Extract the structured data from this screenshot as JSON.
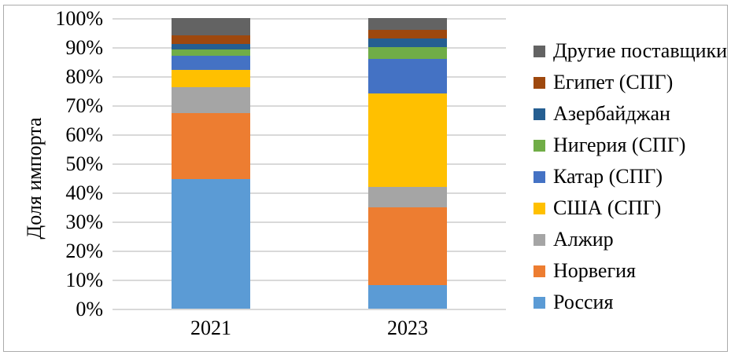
{
  "chart_data": {
    "type": "bar",
    "subtype": "stacked-100-percent",
    "title": "",
    "xlabel": "",
    "ylabel": "Доля импорта",
    "unit": "%",
    "categories": [
      "2021",
      "2023"
    ],
    "series": [
      {
        "name": "Россия",
        "color": "#5B9BD5",
        "values": [
          45,
          8
        ]
      },
      {
        "name": "Норвегия",
        "color": "#ED7D31",
        "values": [
          23,
          27
        ]
      },
      {
        "name": "Алжир",
        "color": "#A5A5A5",
        "values": [
          9,
          7
        ]
      },
      {
        "name": "США (СПГ)",
        "color": "#FFC000",
        "values": [
          6,
          32
        ]
      },
      {
        "name": "Катар (СПГ)",
        "color": "#4472C4",
        "values": [
          5,
          12
        ]
      },
      {
        "name": "Нигерия (СПГ)",
        "color": "#70AD47",
        "values": [
          2,
          4
        ]
      },
      {
        "name": "Азербайджан",
        "color": "#255E91",
        "values": [
          2,
          3
        ]
      },
      {
        "name": "Египет (СПГ)",
        "color": "#9E480E",
        "values": [
          3,
          3
        ]
      },
      {
        "name": "Другие поставщики",
        "color": "#636363",
        "values": [
          6,
          4
        ]
      }
    ],
    "ylim": [
      0,
      100
    ],
    "y_ticks": [
      "0%",
      "10%",
      "20%",
      "30%",
      "40%",
      "50%",
      "60%",
      "70%",
      "80%",
      "90%",
      "100%"
    ],
    "grid": true,
    "legend_position": "right",
    "legend_order_top_to_bottom": [
      "Другие поставщики",
      "Египет (СПГ)",
      "Азербайджан",
      "Нигерия (СПГ)",
      "Катар (СПГ)",
      "США (СПГ)",
      "Алжир",
      "Норвегия",
      "Россия"
    ],
    "colors_meta": {
      "gridline": "#D9D9D9",
      "chart_border": "#ABABAB",
      "text": "#000000",
      "background": "#FFFFFF"
    }
  }
}
